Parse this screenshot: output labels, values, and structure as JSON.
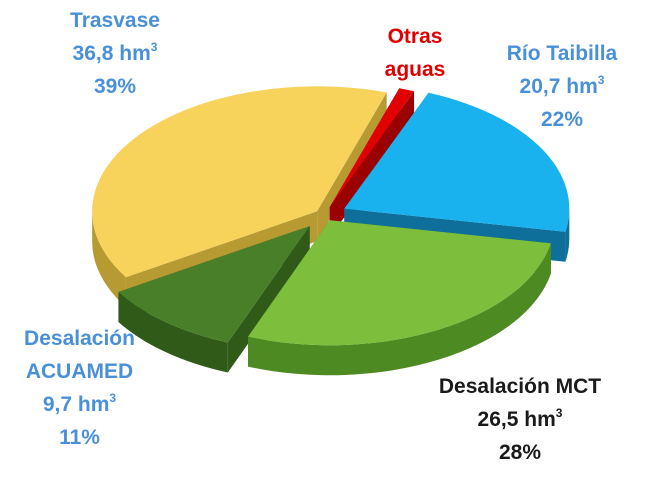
{
  "chart_data": {
    "type": "pie",
    "style": "3d-exploded",
    "slices": [
      {
        "name": "Río Taibilla",
        "value": 20.7,
        "unit": "hm",
        "unit_sup": "3",
        "percent": "22%",
        "value_text": "20,7",
        "color": "#19B2EE",
        "side_color": "#0E6F9A",
        "label_color": "#4A90D9"
      },
      {
        "name": "Desalación MCT",
        "value": 26.5,
        "unit": "hm",
        "unit_sup": "3",
        "percent": "28%",
        "value_text": "26,5",
        "color": "#7DBE3C",
        "side_color": "#4E8A22",
        "label_color": "#1a1a1a"
      },
      {
        "name": "Desalación ACUAMED",
        "name_line1": "Desalación",
        "name_line2": "ACUAMED",
        "value": 9.7,
        "unit": "hm",
        "unit_sup": "3",
        "percent": "11%",
        "value_text": "9,7",
        "color": "#4A7F2A",
        "side_color": "#2F5A18",
        "label_color": "#4A90D9"
      },
      {
        "name": "Trasvase",
        "value": 36.8,
        "unit": "hm",
        "unit_sup": "3",
        "percent": "39%",
        "value_text": "36,8",
        "color": "#F7D35B",
        "side_color": "#B89A33",
        "label_color": "#4A90D9"
      },
      {
        "name": "Otras aguas",
        "name_line1": "Otras",
        "name_line2": "aguas",
        "value": 0.0,
        "percent": "",
        "color": "#E00000",
        "side_color": "#9A0000",
        "label_color": "#E00000"
      }
    ]
  }
}
